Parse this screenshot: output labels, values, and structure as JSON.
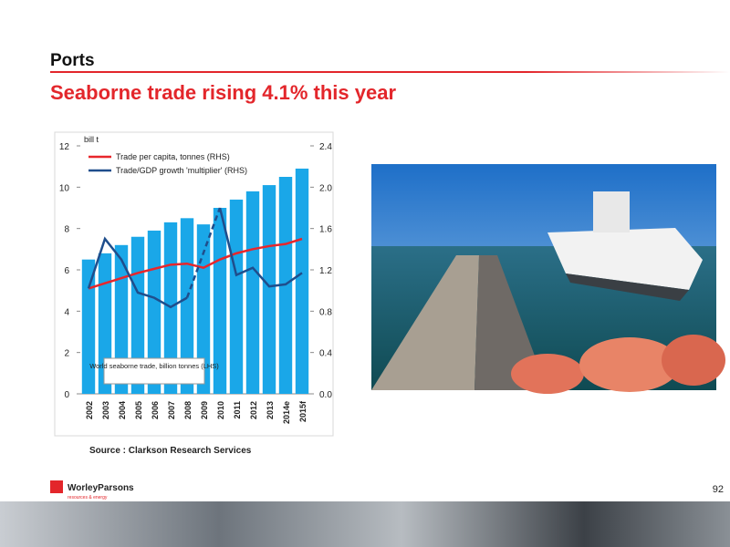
{
  "header": {
    "section": "Ports",
    "title": "Seaborne trade rising 4.1% this year"
  },
  "chart_data": {
    "type": "bar",
    "y_unit": "bill t",
    "categories": [
      "2002",
      "2003",
      "2004",
      "2005",
      "2006",
      "2007",
      "2008",
      "2009",
      "2010",
      "2011",
      "2012",
      "2013",
      "2014e",
      "2015f"
    ],
    "series": [
      {
        "name": "World seaborne trade, billion tonnes (LHS)",
        "type": "bar",
        "color": "#1aa7e8",
        "values": [
          6.5,
          6.8,
          7.2,
          7.6,
          7.9,
          8.3,
          8.5,
          8.2,
          9.0,
          9.4,
          9.8,
          10.1,
          10.5,
          10.9
        ]
      },
      {
        "name": "Trade per capita, tonnes (RHS)",
        "type": "line",
        "axis": "y2",
        "color": "#e8262b",
        "values": [
          1.02,
          1.07,
          1.12,
          1.17,
          1.21,
          1.25,
          1.26,
          1.22,
          1.3,
          1.36,
          1.4,
          1.43,
          1.45,
          1.5
        ]
      },
      {
        "name": "Trade/GDP growth 'multiplier' (RHS)",
        "type": "line",
        "axis": "y2",
        "color": "#1f4e8c",
        "dashed_gaps": true,
        "values": [
          1.02,
          1.5,
          1.3,
          0.98,
          0.93,
          0.84,
          0.93,
          null,
          1.8,
          1.15,
          1.22,
          1.04,
          1.06,
          1.17
        ]
      }
    ],
    "ylim": [
      0,
      12
    ],
    "yticks": [
      0,
      2,
      4,
      6,
      8,
      10,
      12
    ],
    "y2lim": [
      0,
      2.4
    ],
    "y2ticks": [
      {
        "value": 0,
        "label": "0.0"
      },
      0.4,
      0.8,
      1.2,
      1.6,
      {
        "value": 2,
        "label": "2.0"
      },
      2.4
    ],
    "source": "Source : Clarkson Research Services"
  },
  "footer": {
    "company": "WorleyParsons",
    "tagline": "resources & energy",
    "page_number": "92"
  }
}
